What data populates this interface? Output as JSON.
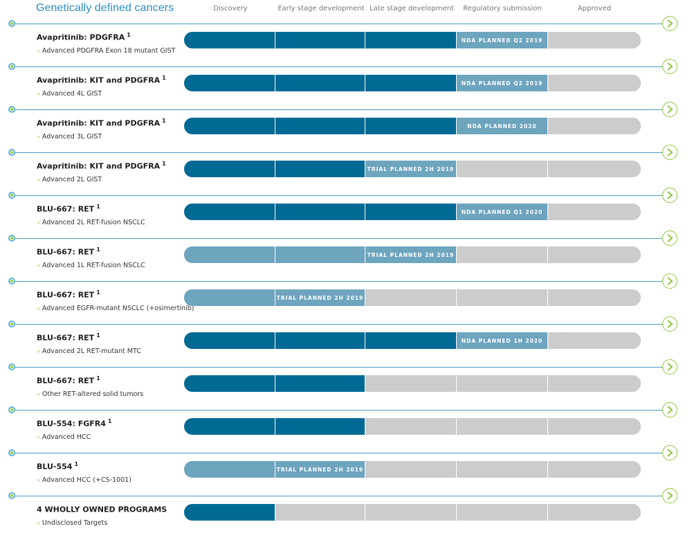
{
  "header": {
    "title": "Genetically defined cancers",
    "stages": [
      "Discovery",
      "Early stage development",
      "Late stage development",
      "Regulatory submission",
      "Approved"
    ]
  },
  "colors": {
    "completed": "#006a94",
    "planned": "#6da4be",
    "not_started": "#cccccc",
    "accent": "#8cc63f",
    "title": "#2c8ec0"
  },
  "programs": [
    {
      "name": "Avapritinib: PDGFRA",
      "sup": "1",
      "indication": "Advanced PDGFRA Exon 18 mutant GIST",
      "stages": [
        "dark",
        "dark",
        "dark",
        "light",
        "grey"
      ],
      "label": "NDA PLANNED Q2 2019",
      "label_stage": 3
    },
    {
      "name": "Avapritinib: KIT and PDGFRA",
      "sup": "1",
      "indication": "Advanced 4L GIST",
      "stages": [
        "dark",
        "dark",
        "dark",
        "light",
        "grey"
      ],
      "label": "NDA PLANNED Q2 2019",
      "label_stage": 3
    },
    {
      "name": "Avapritinib: KIT and PDGFRA",
      "sup": "1",
      "indication": "Advanced 3L GIST",
      "stages": [
        "dark",
        "dark",
        "dark",
        "light",
        "grey"
      ],
      "label": "NDA PLANNED 2020",
      "label_stage": 3
    },
    {
      "name": "Avapritinib: KIT and PDGFRA",
      "sup": "1",
      "indication": "Advanced 2L GIST",
      "stages": [
        "dark",
        "dark",
        "light",
        "grey",
        "grey"
      ],
      "label": "TRIAL PLANNED 2H 2019",
      "label_stage": 2
    },
    {
      "name": "BLU-667: RET",
      "sup": "1",
      "indication": "Advanced 2L RET-fusion NSCLC",
      "stages": [
        "dark",
        "dark",
        "dark",
        "light",
        "grey"
      ],
      "label": "NDA PLANNED Q1 2020",
      "label_stage": 3
    },
    {
      "name": "BLU-667: RET",
      "sup": "1",
      "indication": "Advanced 1L RET-fusion NSCLC",
      "stages": [
        "light",
        "light",
        "light",
        "grey",
        "grey"
      ],
      "label": "TRIAL PLANNED 2H 2019",
      "label_stage": 2
    },
    {
      "name": "BLU-667: RET",
      "sup": "1",
      "indication": "Advanced EGFR-mutant NSCLC (+osimertinib)",
      "stages": [
        "light",
        "light",
        "grey",
        "grey",
        "grey"
      ],
      "label": "TRIAL PLANNED 2H 2019",
      "label_stage": 1
    },
    {
      "name": "BLU-667: RET",
      "sup": "1",
      "indication": "Advanced 2L RET-mutant MTC",
      "stages": [
        "dark",
        "dark",
        "dark",
        "light",
        "grey"
      ],
      "label": "NDA PLANNED 1H 2020",
      "label_stage": 3
    },
    {
      "name": "BLU-667: RET",
      "sup": "1",
      "indication": "Other RET-altered solid tumors",
      "stages": [
        "dark",
        "dark",
        "grey",
        "grey",
        "grey"
      ],
      "label": "",
      "label_stage": -1
    },
    {
      "name": "BLU-554: FGFR4",
      "sup": "1",
      "indication": "Advanced HCC",
      "stages": [
        "dark",
        "dark",
        "grey",
        "grey",
        "grey"
      ],
      "label": "",
      "label_stage": -1
    },
    {
      "name": "BLU-554",
      "sup": "1",
      "indication": "Advanced HCC (+CS-1001)",
      "stages": [
        "light",
        "light",
        "grey",
        "grey",
        "grey"
      ],
      "label": "TRIAL PLANNED 2H 2019",
      "label_stage": 1
    },
    {
      "name": "4 WHOLLY OWNED PROGRAMS",
      "sup": "",
      "indication": "Undisclosed Targets",
      "stages": [
        "dark",
        "grey",
        "grey",
        "grey",
        "grey"
      ],
      "label": "",
      "label_stage": -1
    }
  ]
}
